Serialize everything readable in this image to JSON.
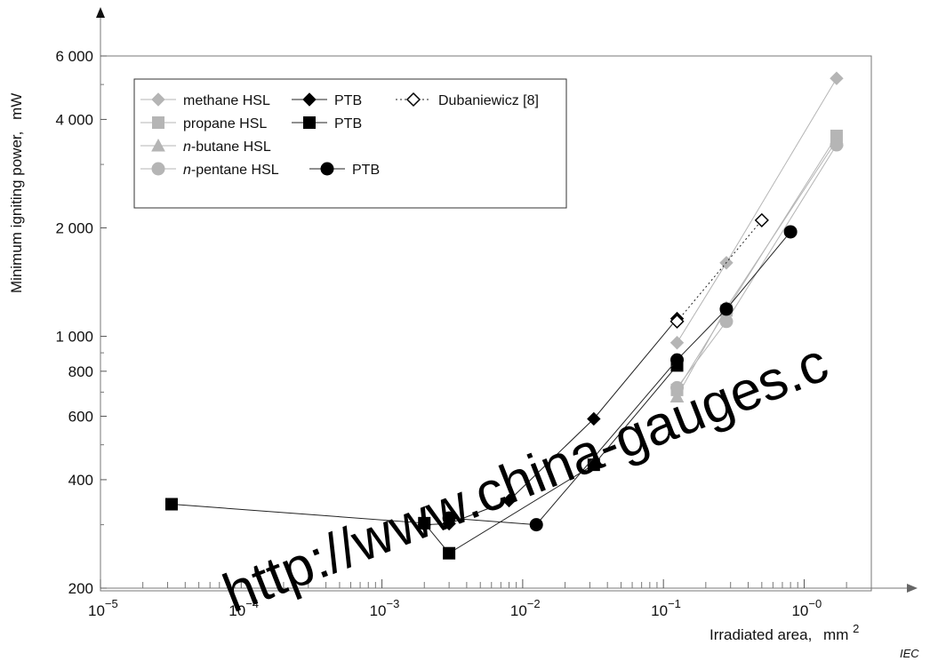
{
  "chart_data": {
    "type": "line",
    "ylabel": "Minimum igniting power,",
    "ylabel_unit": "mW",
    "xlabel": "Irradiated area,",
    "xlabel_unit": "mm",
    "xlabel_unit_sup": "2",
    "x_scale": "log",
    "y_scale": "log",
    "xlim": [
      1e-05,
      3
    ],
    "ylim": [
      200,
      6000
    ],
    "x_ticks": [
      {
        "value": 1e-05,
        "base": "10",
        "exp": "−5"
      },
      {
        "value": 0.0001,
        "base": "10",
        "exp": "−4"
      },
      {
        "value": 0.001,
        "base": "10",
        "exp": "−3"
      },
      {
        "value": 0.01,
        "base": "10",
        "exp": "−2"
      },
      {
        "value": 0.1,
        "base": "10",
        "exp": "−1"
      },
      {
        "value": 1,
        "base": "10",
        "exp": "−0"
      }
    ],
    "y_ticks": [
      {
        "value": 200,
        "label": "200"
      },
      {
        "value": 400,
        "label": "400"
      },
      {
        "value": 600,
        "label": "600"
      },
      {
        "value": 800,
        "label": "800"
      },
      {
        "value": 1000,
        "label": "1 000"
      },
      {
        "value": 2000,
        "label": "2 000"
      },
      {
        "value": 4000,
        "label": "4 000"
      },
      {
        "value": 6000,
        "label": "6 000"
      }
    ],
    "grid": false,
    "legend_position": "top-left",
    "series": [
      {
        "key": "methane_hsl",
        "name": "methane HSL",
        "marker": "diamond",
        "color": "#b5b5b5",
        "fill": "filled",
        "line": "solid",
        "points": [
          [
            0.125,
            960
          ],
          [
            0.28,
            1600
          ],
          [
            1.7,
            5200
          ]
        ]
      },
      {
        "key": "propane_hsl",
        "name": "propane HSL",
        "marker": "square",
        "color": "#b5b5b5",
        "fill": "filled",
        "line": "solid",
        "points": [
          [
            0.125,
            710
          ],
          [
            0.28,
            1180
          ],
          [
            1.7,
            3600
          ]
        ]
      },
      {
        "key": "butane_hsl",
        "name": "n-butane HSL",
        "marker": "triangle",
        "color": "#b5b5b5",
        "fill": "filled",
        "line": "solid",
        "points": [
          [
            0.125,
            680
          ],
          [
            0.28,
            1200
          ],
          [
            1.7,
            3500
          ]
        ]
      },
      {
        "key": "pentane_hsl",
        "name": "n-pentane HSL",
        "marker": "circle",
        "color": "#b5b5b5",
        "fill": "filled",
        "line": "solid",
        "points": [
          [
            0.125,
            720
          ],
          [
            0.28,
            1100
          ],
          [
            1.7,
            3400
          ]
        ]
      },
      {
        "key": "methane_ptb",
        "name": "PTB",
        "marker": "diamond",
        "color": "#000000",
        "fill": "filled",
        "line": "solid",
        "points": [
          [
            0.002,
            300
          ],
          [
            0.003,
            302
          ],
          [
            0.008,
            350
          ],
          [
            0.032,
            590
          ],
          [
            0.125,
            1120
          ]
        ]
      },
      {
        "key": "propane_ptb",
        "name": "PTB",
        "marker": "square",
        "color": "#000000",
        "fill": "filled",
        "line": "solid",
        "points": [
          [
            3.2e-05,
            342
          ],
          [
            0.002,
            303
          ],
          [
            0.003,
            250
          ],
          [
            0.032,
            440
          ],
          [
            0.125,
            830
          ]
        ]
      },
      {
        "key": "pentane_ptb",
        "name": "PTB",
        "marker": "circle",
        "color": "#000000",
        "fill": "filled",
        "line": "solid",
        "points": [
          [
            0.003,
            313
          ],
          [
            0.0125,
            300
          ],
          [
            0.125,
            860
          ],
          [
            0.28,
            1190
          ],
          [
            0.8,
            1950
          ]
        ]
      },
      {
        "key": "dubaniewicz",
        "name": "Dubaniewicz [8]",
        "marker": "diamond",
        "color": "#000000",
        "fill": "open",
        "line": "dotted",
        "points": [
          [
            0.125,
            1100
          ],
          [
            0.5,
            2100
          ]
        ]
      }
    ]
  },
  "legend": {
    "rows": [
      [
        {
          "series": "methane_hsl",
          "label": "methane HSL",
          "italic": ""
        },
        {
          "series": "methane_ptb",
          "label": "PTB",
          "italic": ""
        },
        {
          "series": "dubaniewicz",
          "label": "Dubaniewicz [8]",
          "italic": ""
        }
      ],
      [
        {
          "series": "propane_hsl",
          "label": "propane HSL",
          "italic": ""
        },
        {
          "series": "propane_ptb",
          "label": "PTB",
          "italic": ""
        }
      ],
      [
        {
          "series": "butane_hsl",
          "label": "-butane HSL",
          "italic": "n"
        }
      ],
      [
        {
          "series": "pentane_hsl",
          "label": "-pentane HSL",
          "italic": "n"
        },
        {
          "series": "pentane_ptb",
          "label": "PTB",
          "italic": ""
        }
      ]
    ]
  },
  "watermark": "http://www.china-gauges.c",
  "footer": {
    "iec": "IEC"
  }
}
